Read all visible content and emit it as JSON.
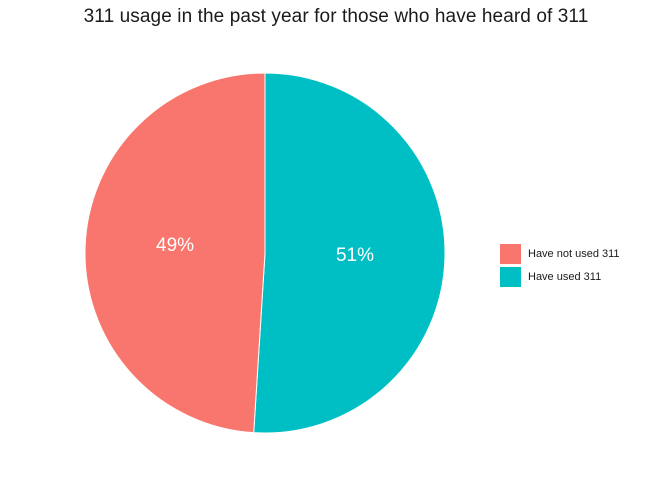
{
  "chart_data": {
    "type": "pie",
    "title": "311 usage in the past year for those who have heard of 311",
    "slices": [
      {
        "label": "Have not used 311",
        "value": 49,
        "display": "49%",
        "color": "#F8766D"
      },
      {
        "label": "Have used 311",
        "value": 51,
        "display": "51%",
        "color": "#00BFC4"
      }
    ],
    "legend_position": "right"
  }
}
